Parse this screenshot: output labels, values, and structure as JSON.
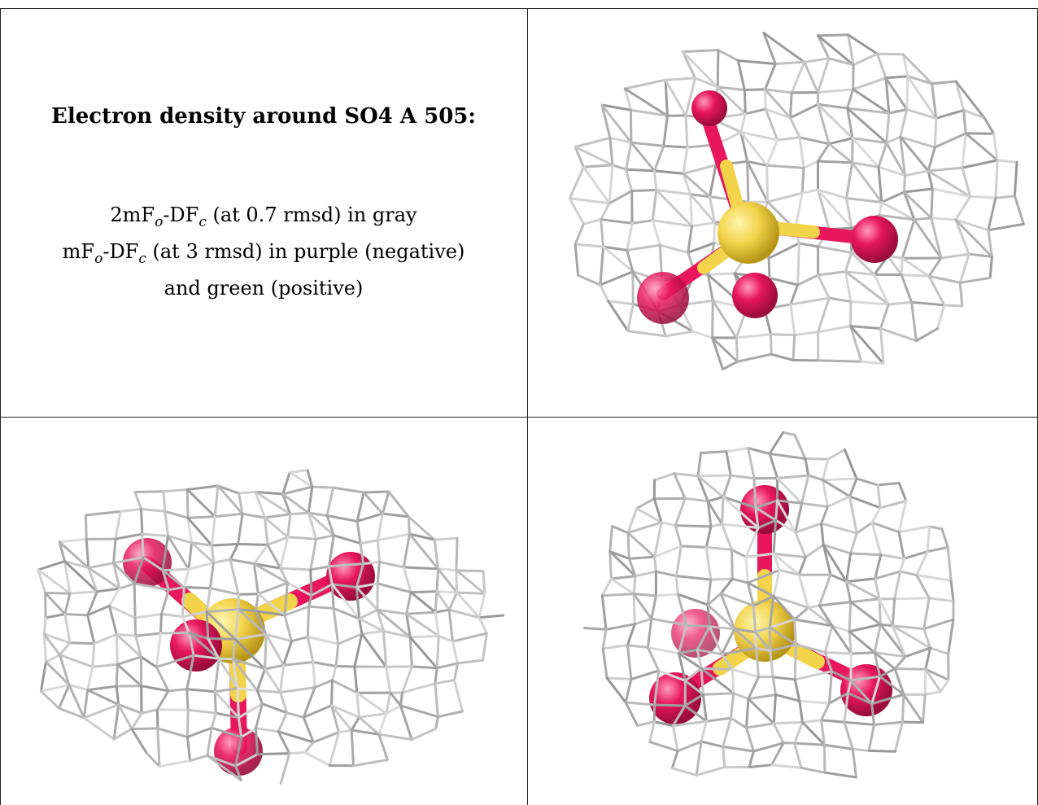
{
  "caption": {
    "title": "Electron density around SO4 A 505:",
    "line1": {
      "prefix": "2mF",
      "s1": "o",
      "mid": "-DF",
      "s2": "c",
      "suffix": " (at 0.7 rmsd) in gray"
    },
    "line2": {
      "prefix": "mF",
      "s1": "o",
      "mid": "-DF",
      "s2": "c",
      "suffix": " (at 3 rmsd) in purple (negative)"
    },
    "line3": "and green (positive)"
  },
  "colors": {
    "mesh": "#b8b8b8",
    "sulfur": "#f2d34a",
    "oxygen": "#e8175d",
    "border": "#222222"
  },
  "views": [
    {
      "name": "view-top-right"
    },
    {
      "name": "view-bottom-left"
    },
    {
      "name": "view-bottom-right"
    }
  ]
}
